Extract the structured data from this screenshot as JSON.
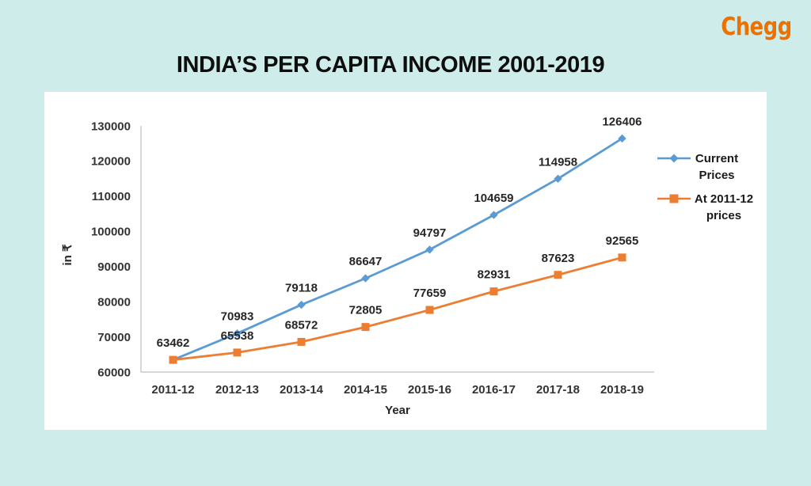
{
  "brand": {
    "logo_text": "Chegg",
    "logo_color": "#ed7100"
  },
  "page_title": "INDIA’S PER CAPITA INCOME 2001-2019",
  "chart_data": {
    "type": "line",
    "title": "INDIA’S PER CAPITA INCOME 2001-2019",
    "categories": [
      "2011-12",
      "2012-13",
      "2013-14",
      "2014-15",
      "2015-16",
      "2016-17",
      "2017-18",
      "2018-19"
    ],
    "series": [
      {
        "name": "Current Prices",
        "values": [
          63462,
          70983,
          79118,
          86647,
          94797,
          104659,
          114958,
          126406
        ],
        "color": "#5b9bd5",
        "marker": "diamond",
        "show_labels": true,
        "label_skip_first": false
      },
      {
        "name": "At 2011-12 prices",
        "values": [
          63462,
          65538,
          68572,
          72805,
          77659,
          82931,
          87623,
          92565
        ],
        "color": "#ed7d31",
        "marker": "square",
        "show_labels": true,
        "label_skip_first": true
      }
    ],
    "xlabel": "Year",
    "ylabel": "in ₹",
    "ylim": [
      60000,
      130000
    ],
    "ytick_step": 10000,
    "yticks": [
      "60000",
      "70000",
      "80000",
      "90000",
      "100000",
      "110000",
      "120000",
      "130000"
    ],
    "grid": false,
    "legend_position": "right",
    "axis_color": "#bdbdbd",
    "label_color": "#262626",
    "tick_color": "#333333"
  }
}
